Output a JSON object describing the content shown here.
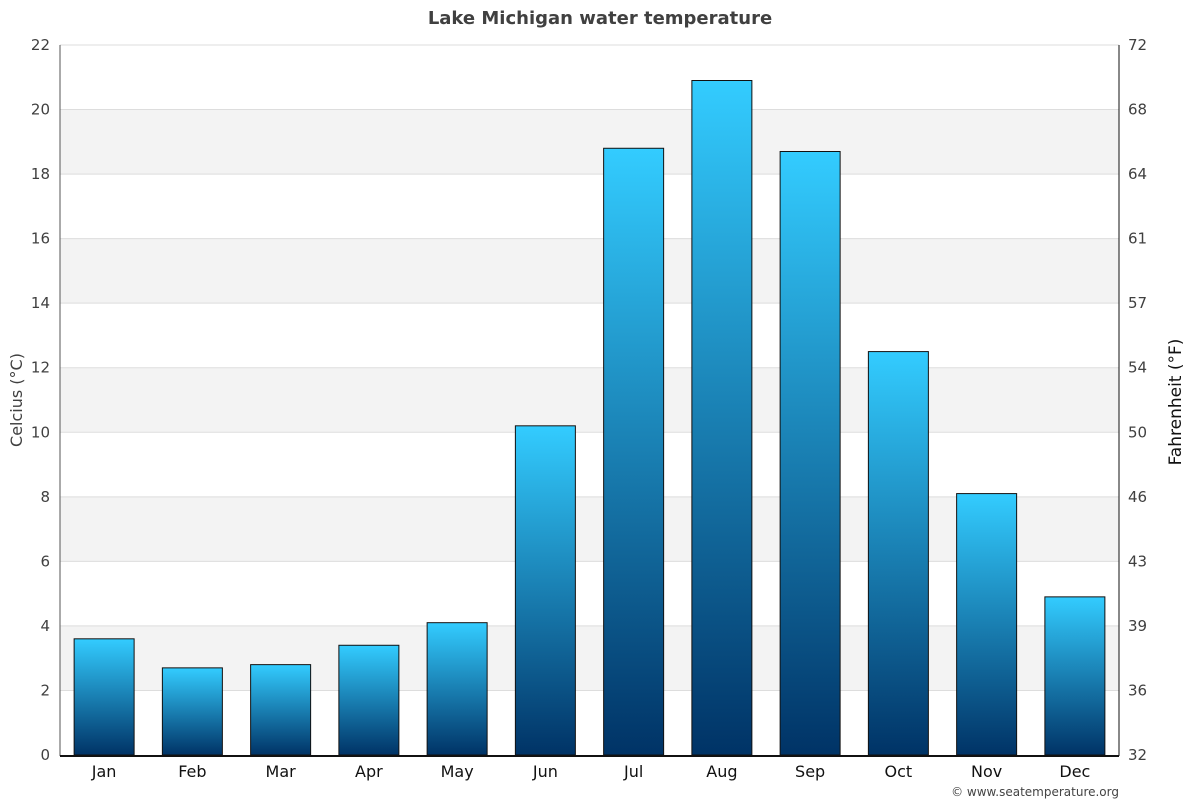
{
  "chart_data": {
    "type": "bar",
    "title": "Lake Michigan water temperature",
    "categories": [
      "Jan",
      "Feb",
      "Mar",
      "Apr",
      "May",
      "Jun",
      "Jul",
      "Aug",
      "Sep",
      "Oct",
      "Nov",
      "Dec"
    ],
    "values": [
      3.6,
      2.7,
      2.8,
      3.4,
      4.1,
      10.2,
      18.8,
      20.9,
      18.7,
      12.5,
      8.1,
      4.9
    ],
    "ylabel": "Celcius (°C)",
    "y2label": "Fahrenheit (°F)",
    "ylim": [
      0,
      22
    ],
    "yticks": [
      0,
      2,
      4,
      6,
      8,
      10,
      12,
      14,
      16,
      18,
      20,
      22
    ],
    "y2ticks": [
      "32",
      "36",
      "39",
      "43",
      "46",
      "50",
      "54",
      "57",
      "61",
      "64",
      "68",
      "72"
    ],
    "grid": true,
    "bar_colors": {
      "top": "#33ccff",
      "bottom": "#003366"
    },
    "band_color": "#f3f3f3",
    "credit": "© www.seatemperature.org"
  }
}
